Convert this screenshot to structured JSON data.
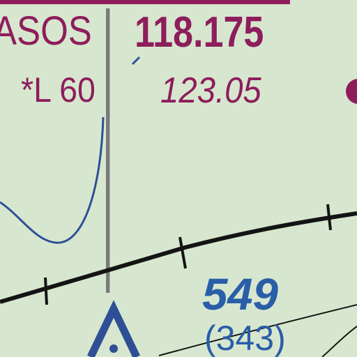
{
  "map": {
    "labels": {
      "asos": "ASOS",
      "asos_frequency": "118.175",
      "lighting": "*L 60",
      "ctaf_frequency": "123.05",
      "obstacle_elevation_msl": "549",
      "obstacle_height_agl": "(343)"
    },
    "colors": {
      "background": "#d7e7cf",
      "magenta_text": "#8e1d5c",
      "blue_text": "#2a5ea8",
      "contour_line": "#2e4f96",
      "black_line": "#141414",
      "grey_line": "#7a7a7a"
    },
    "symbols": [
      "obstacle-tower-symbol",
      "ctaf-circle-symbol"
    ]
  }
}
